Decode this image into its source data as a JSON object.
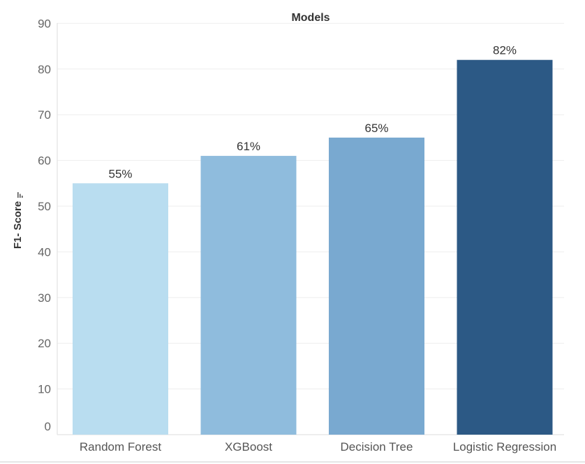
{
  "chart_data": {
    "type": "bar",
    "title": "Models",
    "ylabel": "F1- Score",
    "xlabel": "",
    "categories": [
      "Random Forest",
      "XGBoost",
      "Decision Tree",
      "Logistic Regression"
    ],
    "values": [
      55,
      61,
      65,
      82
    ],
    "data_labels": [
      "55%",
      "61%",
      "65%",
      "82%"
    ],
    "colors": [
      "#b9ddf0",
      "#8fbcdd",
      "#79a9d0",
      "#2c5985"
    ],
    "ylim": [
      0,
      90
    ],
    "yticks": [
      "0",
      "10",
      "20",
      "30",
      "40",
      "50",
      "60",
      "70",
      "80",
      "90"
    ],
    "grid": true,
    "legend": "none",
    "sort_icon": "sort-descending-icon"
  }
}
